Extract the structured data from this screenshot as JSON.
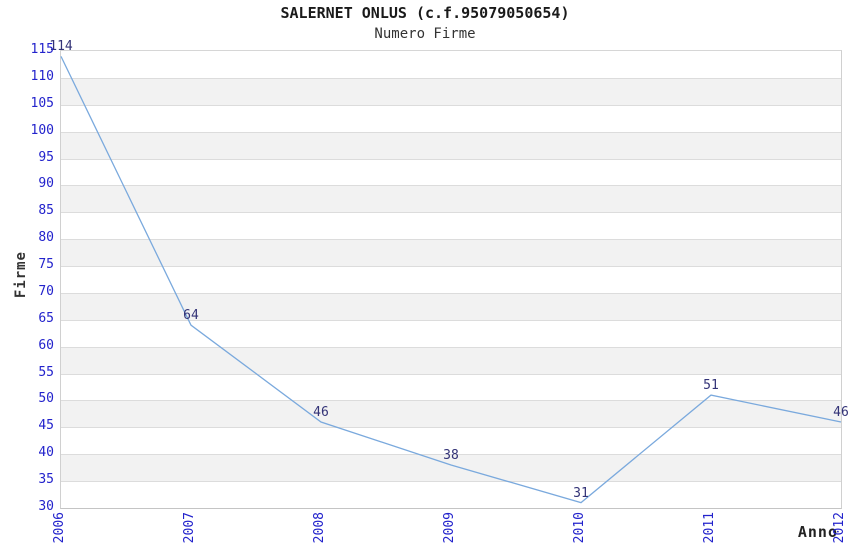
{
  "chart_data": {
    "type": "line",
    "title": "SALERNET ONLUS (c.f.95079050654)",
    "subtitle": "Numero Firme",
    "xlabel": "Anno",
    "ylabel": "Firme",
    "categories": [
      "2006",
      "2007",
      "2008",
      "2009",
      "2010",
      "2011",
      "2012"
    ],
    "series": [
      {
        "name": "Numero Firme",
        "values": [
          114,
          64,
          46,
          38,
          31,
          51,
          46
        ]
      }
    ],
    "ylim": [
      30,
      115
    ],
    "ytick_step": 5,
    "grid": "horizontal",
    "alternating_bands": true,
    "legend": "none",
    "point_labels_visible": true,
    "colors": {
      "line": "#7aa9dd",
      "tick_label": "#2323cc",
      "point_label": "#333377",
      "band": "#f2f2f2",
      "gridline": "#dcdcdc",
      "plot_border": "#d0d0d0",
      "title": "#1a1a1a",
      "subtitle": "#333333",
      "axis_title": "#333333",
      "background": "#ffffff"
    }
  }
}
